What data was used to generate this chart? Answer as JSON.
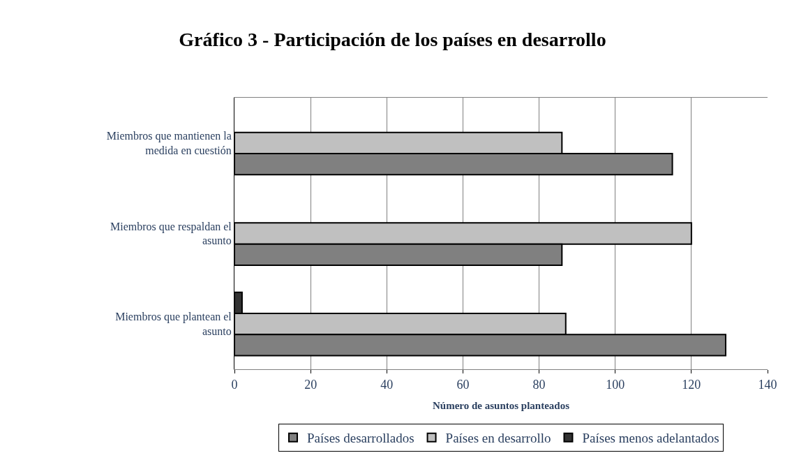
{
  "chart_data": {
    "type": "bar",
    "orientation": "horizontal",
    "title": "Gráfico 3 - Participación de los países en desarrollo",
    "xlabel": "Número de asuntos planteados",
    "categories": [
      "Miembros que mantienen la medida en cuestión",
      "Miembros que respaldan el asunto",
      "Miembros que plantean el asunto"
    ],
    "series": [
      {
        "name": "Países desarrollados",
        "color": "#808080",
        "values": [
          115,
          86,
          129
        ]
      },
      {
        "name": "Países en desarrollo",
        "color": "#c0c0c0",
        "values": [
          86,
          120,
          87
        ]
      },
      {
        "name": "Países menos adelantados",
        "color": "#333333",
        "values": [
          null,
          null,
          2
        ]
      }
    ],
    "xlim": [
      0,
      140
    ],
    "xticks": [
      0,
      20,
      40,
      60,
      80,
      100,
      120,
      140
    ],
    "grid": "x",
    "legend": "bottom"
  }
}
